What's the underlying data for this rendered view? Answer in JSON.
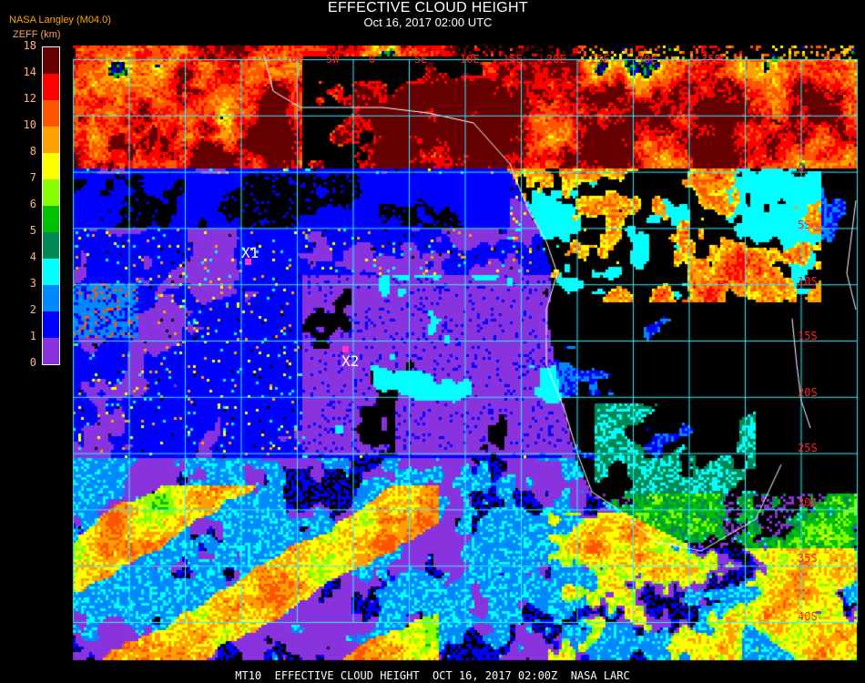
{
  "header": {
    "title": "EFFECTIVE CLOUD HEIGHT",
    "subtitle": "Oct 16, 2017 02:00 UTC",
    "source": "NASA Langley (M04.0)",
    "units": "ZEFF (km)"
  },
  "colorbar": {
    "ticks": [
      "0",
      "1",
      "2",
      "3",
      "4",
      "5",
      "6",
      "7",
      "8",
      "10",
      "12",
      "14",
      "18"
    ],
    "colors": [
      "#8833dd",
      "#0000ff",
      "#0088ff",
      "#00ffff",
      "#008855",
      "#00c000",
      "#88ff00",
      "#ffff00",
      "#ffa000",
      "#ff5500",
      "#ff0000",
      "#660000"
    ]
  },
  "map": {
    "lon_labels": [
      "10W",
      "5W",
      "0",
      "5E",
      "10E",
      "15E",
      "20E",
      "25E",
      "30E",
      "35E"
    ],
    "lat_labels": [
      "0",
      "5S",
      "10S",
      "15S",
      "20S",
      "25S",
      "30S",
      "35S",
      "40S"
    ],
    "grid_color": "#33eeff",
    "label_color": "#ff2222",
    "coast_color": "#ffffff",
    "markers": [
      {
        "label": "X1",
        "color": "#ff33cc"
      },
      {
        "label": "X2",
        "color": "#ff33cc"
      }
    ]
  },
  "footer": "MT10  EFFECTIVE CLOUD HEIGHT  OCT 16, 2017 02:00Z  NASA LARC"
}
